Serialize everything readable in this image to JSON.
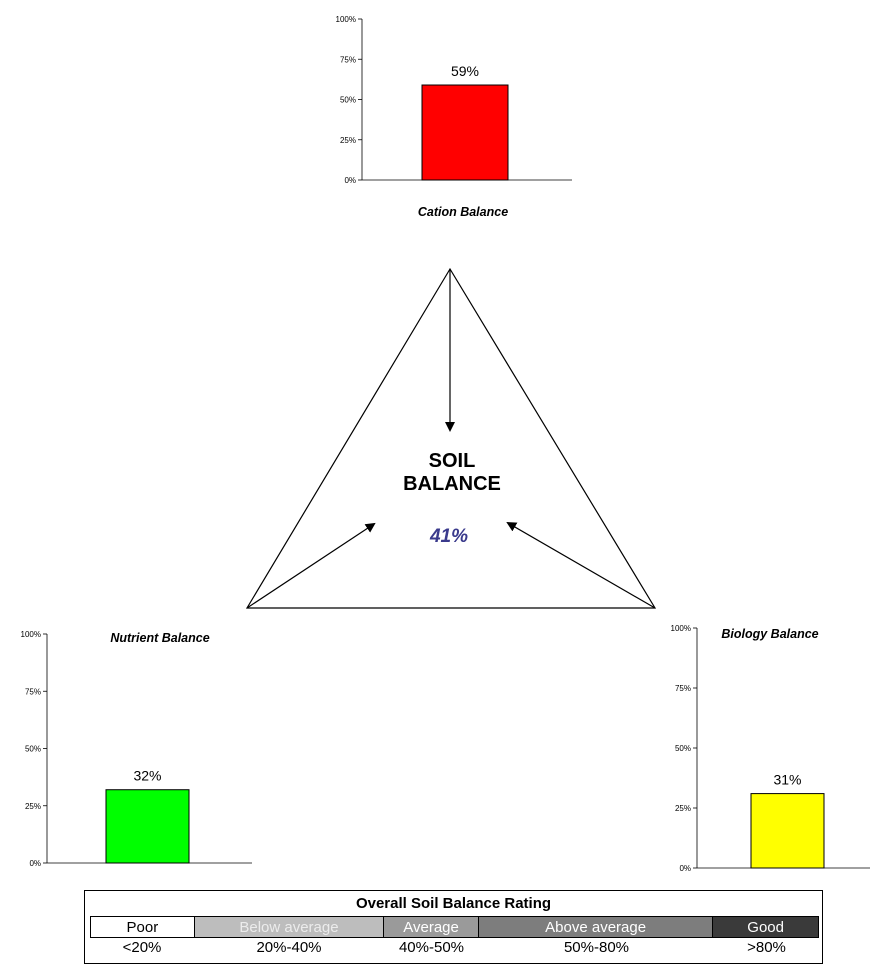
{
  "chart_data": [
    {
      "type": "bar",
      "title": "Cation Balance",
      "categories": [
        ""
      ],
      "values": [
        59
      ],
      "data_labels": [
        "59%"
      ],
      "ylim": [
        0,
        100
      ],
      "yticks": [
        "0%",
        "25%",
        "50%",
        "75%",
        "100%"
      ],
      "color": "#ff0000"
    },
    {
      "type": "bar",
      "title": "Nutrient Balance",
      "categories": [
        ""
      ],
      "values": [
        32
      ],
      "data_labels": [
        "32%"
      ],
      "ylim": [
        0,
        100
      ],
      "yticks": [
        "0%",
        "25%",
        "50%",
        "75%",
        "100%"
      ],
      "color": "#00ff00"
    },
    {
      "type": "bar",
      "title": "Biology Balance",
      "categories": [
        ""
      ],
      "values": [
        31
      ],
      "data_labels": [
        "31%"
      ],
      "ylim": [
        0,
        100
      ],
      "yticks": [
        "0%",
        "25%",
        "50%",
        "75%",
        "100%"
      ],
      "color": "#ffff00"
    }
  ],
  "center": {
    "line1": "SOIL",
    "line2": "BALANCE",
    "value": "41%",
    "value_color": "#3a3a8c"
  },
  "legend": {
    "title": "Overall Soil Balance Rating",
    "bands": [
      {
        "label": "Poor",
        "range": "<20%",
        "color": "#ffffff",
        "text_color": "#000000"
      },
      {
        "label": "Below average",
        "range": "20%-40%",
        "color": "#bdbdbd",
        "text_color": "#ececec"
      },
      {
        "label": "Average",
        "range": "40%-50%",
        "color": "#9a9a9a",
        "text_color": "#ffffff"
      },
      {
        "label": "Above average",
        "range": "50%-80%",
        "color": "#7d7d7d",
        "text_color": "#ffffff"
      },
      {
        "label": "Good",
        "range": ">80%",
        "color": "#3a3a3a",
        "text_color": "#ffffff"
      }
    ]
  }
}
